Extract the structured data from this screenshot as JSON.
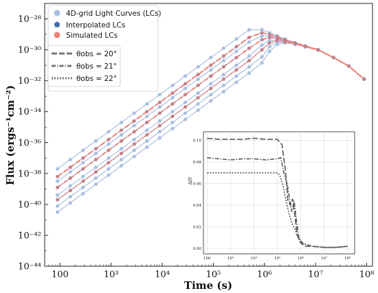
{
  "chart_data": [
    {
      "type": "line",
      "title": "",
      "xlabel": "Time (s)",
      "ylabel": "Flux (ergs⁻¹cm⁻²)",
      "xscale": "log",
      "yscale": "log",
      "xlim": [
        50,
        130000000
      ],
      "ylim": [
        1e-44,
        1e-27
      ],
      "x_ticks": [
        "100",
        "10³",
        "10⁴",
        "10⁵",
        "10⁶",
        "10⁷",
        "10⁸"
      ],
      "y_ticks": [
        "10⁻²⁸",
        "10⁻³⁰",
        "10⁻³²",
        "10⁻³⁴",
        "10⁻³⁶",
        "10⁻³⁸",
        "10⁻⁴⁰",
        "10⁻⁴²",
        "10⁻⁴⁴"
      ],
      "legend_position": "top-left",
      "legend": {
        "markers": [
          "4D-grid Light Curves (LCs)",
          "Interpolated LCs",
          "Simulated LCs"
        ],
        "styles": [
          "θobs = 20°",
          "θobs = 21°",
          "θobs = 22°"
        ]
      },
      "colors": {
        "grid_lc": "#a9bfe0",
        "interpolated": "#3f6fa8",
        "simulated": "#f07f74",
        "dark_line": "#555555"
      },
      "grid_lc_log_flux": [
        [
          -37.7,
          -37.1,
          -36.5,
          -35.9,
          -35.3,
          -34.7,
          -34.1,
          -33.5,
          -32.9,
          -32.3,
          -31.7,
          -31.1,
          -30.5,
          -29.9,
          -29.3,
          -28.7,
          -28.7,
          -28.9,
          -29.1,
          -29.3,
          -29.55,
          -29.75,
          -30.0,
          -30.5,
          -31.05,
          -31.9
        ],
        [
          -38.2,
          -37.6,
          -37.0,
          -36.4,
          -35.8,
          -35.2,
          -34.6,
          -34.0,
          -33.4,
          -32.8,
          -32.2,
          -31.6,
          -31.0,
          -30.4,
          -29.8,
          -29.2,
          -28.9,
          -29.0,
          -29.15,
          -29.35,
          -29.55,
          -29.75,
          -30.0,
          -30.5,
          -31.05,
          -31.9
        ],
        [
          -38.5,
          -37.9,
          -37.3,
          -36.7,
          -36.1,
          -35.5,
          -34.9,
          -34.3,
          -33.7,
          -33.1,
          -32.5,
          -31.9,
          -31.3,
          -30.7,
          -30.1,
          -29.5,
          -29.1,
          -29.1,
          -29.2,
          -29.4,
          -29.6,
          -29.8,
          -30.0,
          -30.5,
          -31.05,
          -31.9
        ],
        [
          -38.9,
          -38.3,
          -37.7,
          -37.1,
          -36.5,
          -35.9,
          -35.3,
          -34.7,
          -34.1,
          -33.5,
          -32.9,
          -32.3,
          -31.7,
          -31.1,
          -30.5,
          -29.9,
          -29.35,
          -29.2,
          -29.25,
          -29.4,
          -29.6,
          -29.8,
          -30.0,
          -30.5,
          -31.05,
          -31.9
        ],
        [
          -39.4,
          -38.8,
          -38.2,
          -37.6,
          -37.0,
          -36.4,
          -35.8,
          -35.2,
          -34.6,
          -34.0,
          -33.4,
          -32.8,
          -32.2,
          -31.6,
          -31.0,
          -30.4,
          -29.7,
          -29.4,
          -29.35,
          -29.45,
          -29.6,
          -29.8,
          -30.0,
          -30.5,
          -31.05,
          -31.9
        ],
        [
          -39.7,
          -39.1,
          -38.5,
          -37.9,
          -37.3,
          -36.7,
          -36.1,
          -35.5,
          -34.9,
          -34.3,
          -33.7,
          -33.1,
          -32.5,
          -31.9,
          -31.3,
          -30.7,
          -30.0,
          -29.55,
          -29.4,
          -29.5,
          -29.6,
          -29.8,
          -30.0,
          -30.5,
          -31.05,
          -31.9
        ],
        [
          -40.1,
          -39.5,
          -38.9,
          -38.3,
          -37.7,
          -37.1,
          -36.5,
          -35.9,
          -35.3,
          -34.7,
          -34.1,
          -33.5,
          -32.9,
          -32.3,
          -31.7,
          -31.1,
          -30.45,
          -29.8,
          -29.5,
          -29.5,
          -29.65,
          -29.8,
          -30.0,
          -30.5,
          -31.05,
          -31.9
        ],
        [
          -40.5,
          -39.9,
          -39.3,
          -38.7,
          -38.1,
          -37.5,
          -36.9,
          -36.3,
          -35.7,
          -35.1,
          -34.5,
          -33.9,
          -33.3,
          -32.7,
          -32.1,
          -31.5,
          -30.85,
          -30.1,
          -29.65,
          -29.55,
          -29.65,
          -29.8,
          -30.0,
          -30.5,
          -31.05,
          -31.9
        ]
      ],
      "x_log": [
        1.95,
        2.2,
        2.45,
        2.7,
        2.95,
        3.2,
        3.45,
        3.7,
        3.95,
        4.2,
        4.45,
        4.7,
        4.95,
        5.2,
        5.45,
        5.7,
        5.95,
        6.1,
        6.25,
        6.4,
        6.6,
        6.8,
        7.05,
        7.35,
        7.65,
        7.95
      ],
      "series": [
        {
          "name": "θobs = 20°",
          "style": "dashed",
          "log_flux": [
            -38.2,
            -37.6,
            -37.0,
            -36.4,
            -35.8,
            -35.2,
            -34.6,
            -34.0,
            -33.4,
            -32.8,
            -32.2,
            -31.6,
            -31.0,
            -30.4,
            -29.8,
            -29.2,
            -28.9,
            -29.0,
            -29.15,
            -29.35,
            -29.55,
            -29.75,
            -30.0,
            -30.5,
            -31.05,
            -31.9
          ]
        },
        {
          "name": "θobs = 21°",
          "style": "dashdot",
          "log_flux": [
            -38.9,
            -38.3,
            -37.7,
            -37.1,
            -36.5,
            -35.9,
            -35.3,
            -34.7,
            -34.1,
            -33.5,
            -32.9,
            -32.3,
            -31.7,
            -31.1,
            -30.5,
            -29.9,
            -29.35,
            -29.2,
            -29.25,
            -29.4,
            -29.6,
            -29.8,
            -30.0,
            -30.5,
            -31.05,
            -31.9
          ]
        },
        {
          "name": "θobs = 22°",
          "style": "dotted",
          "log_flux": [
            -39.7,
            -39.1,
            -38.5,
            -37.9,
            -37.3,
            -36.7,
            -36.1,
            -35.5,
            -34.9,
            -34.3,
            -33.7,
            -33.1,
            -32.5,
            -31.9,
            -31.3,
            -30.7,
            -30.0,
            -29.55,
            -29.4,
            -29.5,
            -29.6,
            -29.8,
            -30.0,
            -30.5,
            -31.05,
            -31.9
          ]
        }
      ]
    },
    {
      "type": "line",
      "title": "",
      "xlabel": "",
      "ylabel": "Δf/f",
      "xscale": "log",
      "xlim": [
        70,
        200000000
      ],
      "ylim": [
        -0.005,
        0.108
      ],
      "x_ticks": [
        "100",
        "10³",
        "10⁴",
        "10⁵",
        "10⁶",
        "10⁷",
        "10⁸"
      ],
      "y_ticks": [
        "0.00",
        "0.02",
        "0.04",
        "0.06",
        "0.08",
        "0.10"
      ],
      "series": [
        {
          "name": "θobs = 20°",
          "style": "dashed",
          "x_log": [
            2.0,
            2.5,
            3.0,
            3.5,
            4.0,
            4.5,
            5.0,
            5.2,
            5.35,
            5.45,
            5.55,
            5.65,
            5.75,
            5.85,
            6.0,
            6.2,
            6.5,
            7.0,
            7.5,
            8.0
          ],
          "values": [
            0.102,
            0.101,
            0.101,
            0.101,
            0.102,
            0.101,
            0.101,
            0.096,
            0.072,
            0.045,
            0.04,
            0.046,
            0.03,
            0.012,
            0.005,
            0.002,
            0.002,
            0.001,
            0.001,
            0.002
          ]
        },
        {
          "name": "θobs = 21°",
          "style": "dashdot",
          "x_log": [
            2.0,
            2.5,
            3.0,
            3.5,
            4.0,
            4.5,
            5.0,
            5.15,
            5.3,
            5.42,
            5.55,
            5.62,
            5.72,
            5.82,
            5.92,
            6.1,
            6.5,
            7.0,
            7.5,
            8.0
          ],
          "values": [
            0.084,
            0.083,
            0.082,
            0.083,
            0.083,
            0.082,
            0.083,
            0.084,
            0.068,
            0.06,
            0.042,
            0.034,
            0.044,
            0.025,
            0.01,
            0.004,
            0.002,
            0.001,
            0.001,
            0.002
          ]
        },
        {
          "name": "θobs = 22°",
          "style": "dotted",
          "x_log": [
            2.0,
            2.5,
            3.0,
            3.5,
            4.0,
            4.5,
            5.0,
            5.1,
            5.22,
            5.35,
            5.5,
            5.65,
            5.75,
            5.85,
            6.0,
            6.2,
            6.5,
            7.0,
            7.5,
            8.0
          ],
          "values": [
            0.07,
            0.07,
            0.07,
            0.07,
            0.07,
            0.07,
            0.07,
            0.068,
            0.06,
            0.047,
            0.032,
            0.022,
            0.018,
            0.012,
            0.006,
            0.004,
            0.002,
            0.001,
            0.001,
            0.002
          ]
        }
      ]
    }
  ]
}
